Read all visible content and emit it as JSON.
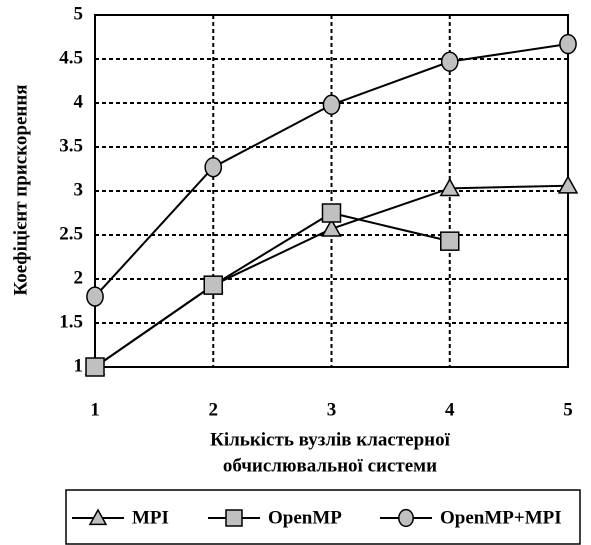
{
  "chart_data": {
    "type": "line",
    "xlabel": [
      "Кількість вузлів кластерної",
      "обчислювальної системи"
    ],
    "ylabel": "Коефіцієнт прискорення",
    "x": [
      1,
      2,
      3,
      4,
      5
    ],
    "xlim": [
      1,
      5
    ],
    "xticks": [
      1,
      2,
      3,
      4,
      5
    ],
    "ylim": [
      1,
      5
    ],
    "yticks": [
      1,
      1.5,
      2,
      2.5,
      3,
      3.5,
      4,
      4.5,
      5
    ],
    "grid": true,
    "legend": "bottom",
    "series": [
      {
        "name": "MPI",
        "color": "#000000",
        "marker": "triangle",
        "marker_fill": "#c0c0c0",
        "values": [
          1.0,
          1.93,
          2.57,
          3.03,
          3.06
        ]
      },
      {
        "name": "OpenMP",
        "color": "#000000",
        "marker": "square",
        "marker_fill": "#c0c0c0",
        "values": [
          1.0,
          1.93,
          2.75,
          2.43,
          null
        ]
      },
      {
        "name": "OpenMP+MPI",
        "color": "#000000",
        "marker": "circle",
        "marker_fill": "#c0c0c0",
        "values": [
          1.8,
          3.27,
          3.98,
          4.47,
          4.67
        ]
      }
    ]
  }
}
